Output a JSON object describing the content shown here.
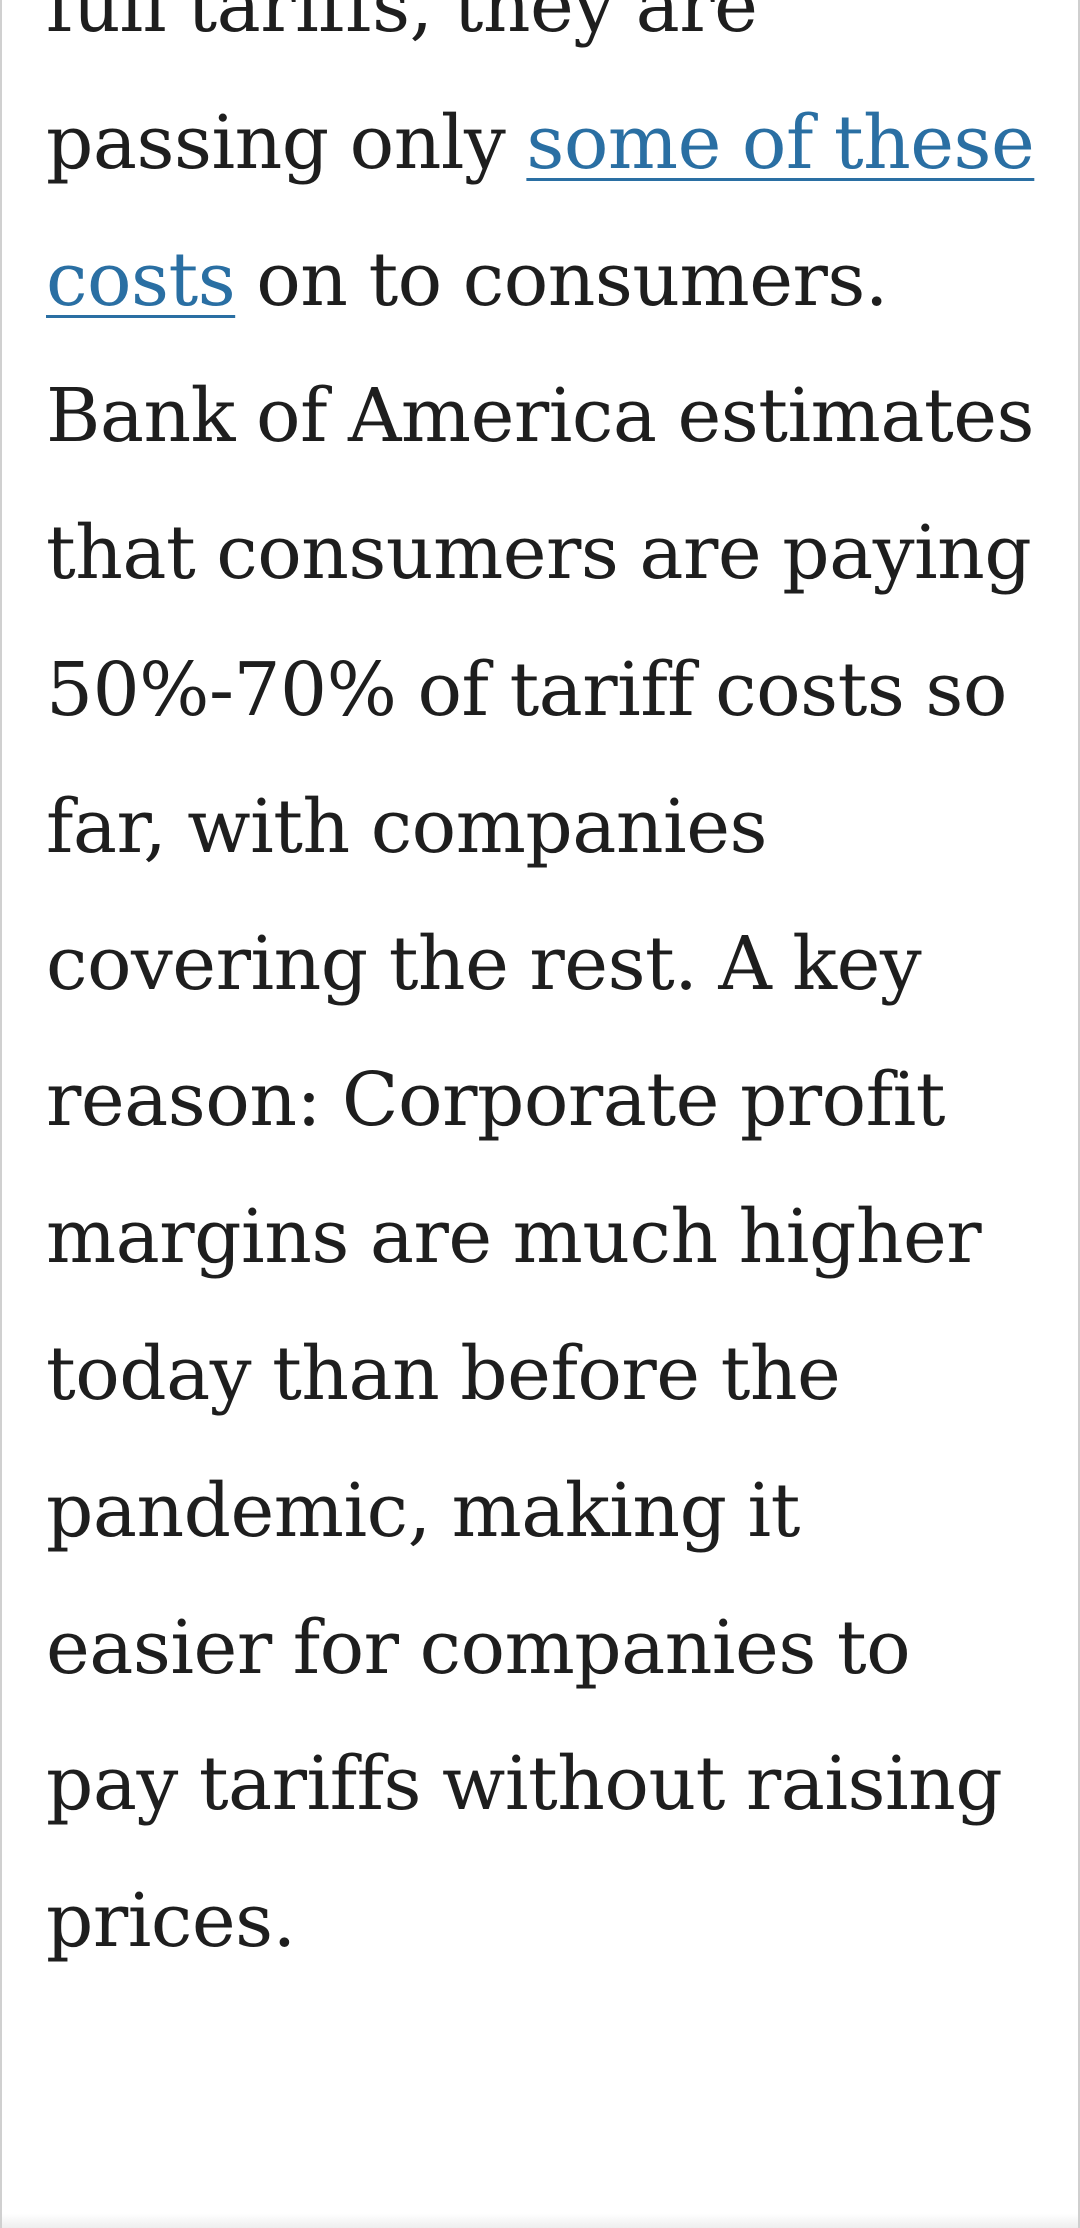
{
  "article": {
    "line_cut_off": "full tariffs, they are",
    "text_before_link": "passing only ",
    "link_label": "some of these costs",
    "text_after_link": " on to consumers. Bank of America estimates that consumers are paying 50%-70% of tariff costs so far, with companies covering the rest. A key reason: Corporate profit margins are much higher today than before the pandemic, making it easier for companies to pay tariffs without raising prices."
  },
  "colors": {
    "text": "#1e1e1e",
    "link": "#2a6fa3",
    "background": "#ffffff"
  }
}
